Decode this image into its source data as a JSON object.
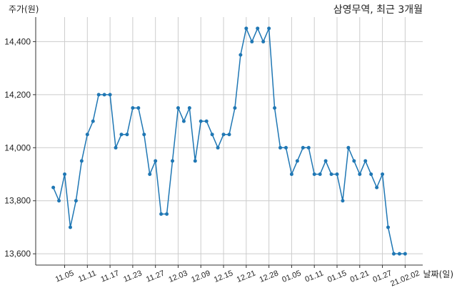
{
  "chart_data": {
    "type": "line",
    "title": "삼영무역, 최근 3개월",
    "xlabel": "날짜(일)",
    "ylabel": "주가(원)",
    "x": [
      "11.03",
      "11.04",
      "11.05",
      "11.06",
      "11.09",
      "11.10",
      "11.11",
      "11.12",
      "11.13",
      "11.16",
      "11.17",
      "11.18",
      "11.19",
      "11.20",
      "11.23",
      "11.24",
      "11.25",
      "11.26",
      "11.27",
      "11.30",
      "12.01",
      "12.02",
      "12.03",
      "12.04",
      "12.07",
      "12.08",
      "12.09",
      "12.10",
      "12.11",
      "12.14",
      "12.15",
      "12.16",
      "12.17",
      "12.18",
      "12.21",
      "12.22",
      "12.23",
      "12.24",
      "12.28",
      "12.29",
      "12.30",
      "01.04",
      "01.05",
      "01.06",
      "01.07",
      "01.08",
      "01.11",
      "01.12",
      "01.13",
      "01.14",
      "01.15",
      "01.18",
      "01.19",
      "01.20",
      "01.21",
      "01.22",
      "01.25",
      "01.26",
      "01.27",
      "01.28",
      "01.29",
      "02.01",
      "02.02"
    ],
    "y": [
      13850,
      13800,
      13900,
      13700,
      13800,
      13950,
      14050,
      14100,
      14200,
      14200,
      14200,
      14000,
      14050,
      14050,
      14150,
      14150,
      14050,
      13900,
      13950,
      13750,
      13750,
      13950,
      14150,
      14100,
      14150,
      13950,
      14100,
      14100,
      14050,
      14000,
      14050,
      14050,
      14150,
      14350,
      14450,
      14400,
      14450,
      14400,
      14450,
      14150,
      14000,
      14000,
      13900,
      13950,
      14000,
      14000,
      13900,
      13900,
      13950,
      13900,
      13900,
      13800,
      14000,
      13950,
      13900,
      13950,
      13900,
      13850,
      13900,
      13700,
      13600,
      13600,
      13600
    ],
    "xticks": [
      {
        "x": "11.05",
        "label": "11.05"
      },
      {
        "x": "11.11",
        "label": "11.11"
      },
      {
        "x": "11.17",
        "label": "11.17"
      },
      {
        "x": "11.23",
        "label": "11.23"
      },
      {
        "x": "11.27",
        "label": "11.27"
      },
      {
        "x": "12.03",
        "label": "12.03"
      },
      {
        "x": "12.09",
        "label": "12.09"
      },
      {
        "x": "12.15",
        "label": "12.15"
      },
      {
        "x": "12.21",
        "label": "12.21"
      },
      {
        "x": "12.28",
        "label": "12.28"
      },
      {
        "x": "01.05",
        "label": "01.05"
      },
      {
        "x": "01.11",
        "label": "01.11"
      },
      {
        "x": "01.15",
        "label": "01.15"
      },
      {
        "x": "01.21",
        "label": "01.21"
      },
      {
        "x": "01.27",
        "label": "01.27"
      },
      {
        "x": "02.02",
        "label": "21.02.02"
      }
    ],
    "yticks": [
      {
        "value": 13600,
        "label": "13,600"
      },
      {
        "value": 13800,
        "label": "13,800"
      },
      {
        "value": 14000,
        "label": "14,000"
      },
      {
        "value": 14200,
        "label": "14,200"
      },
      {
        "value": 14400,
        "label": "14,400"
      }
    ],
    "ylim": [
      13557.5,
      14492.5
    ],
    "grid": true,
    "markers": true,
    "colors": {
      "line": "#1f77b4",
      "grid": "#cccccc",
      "axis": "#333333"
    }
  }
}
